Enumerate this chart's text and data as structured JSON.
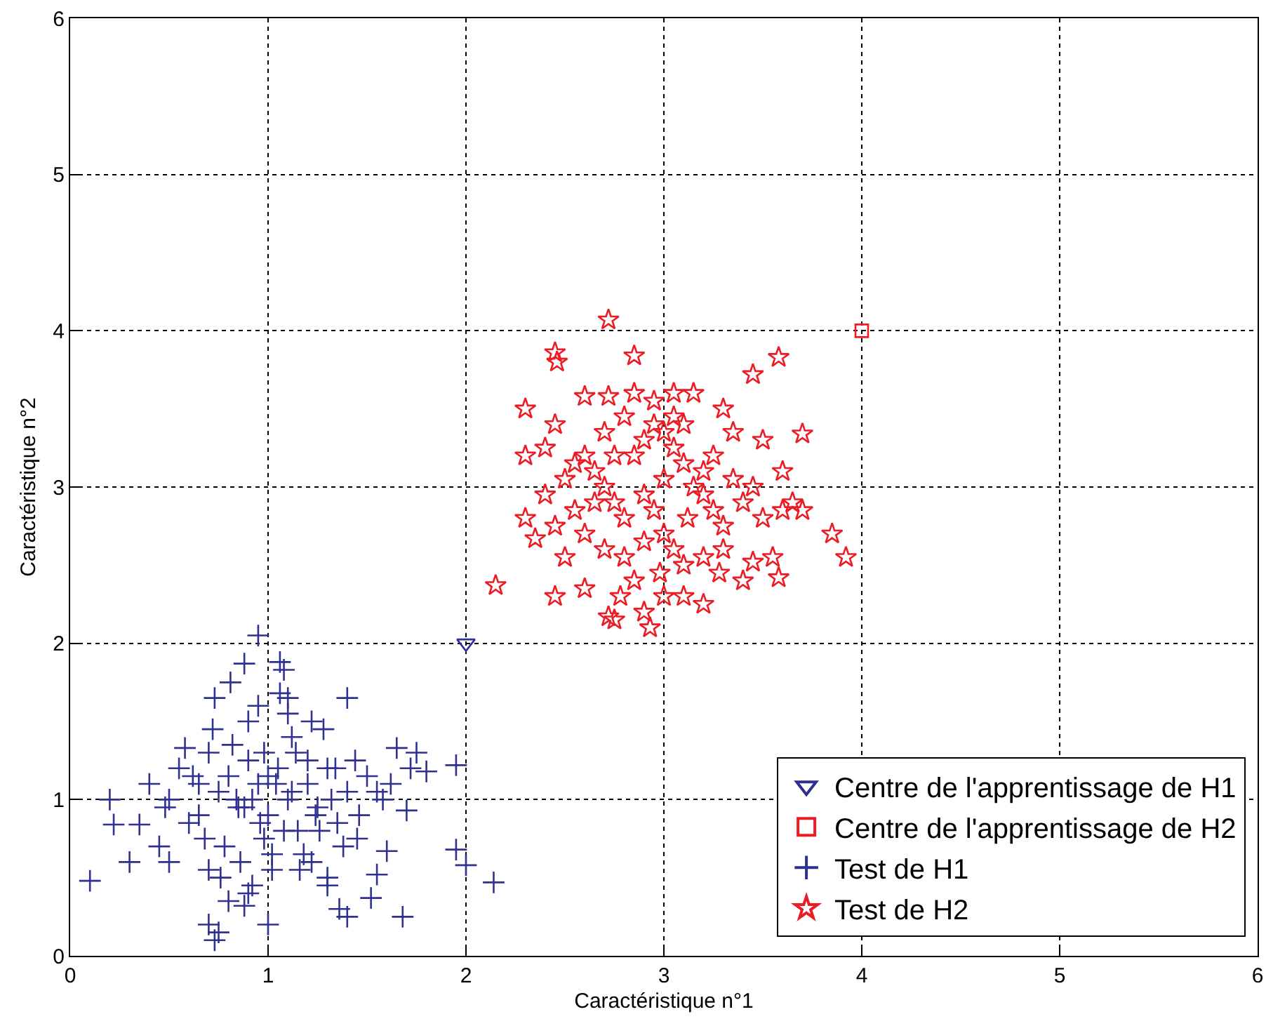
{
  "chart_data": {
    "type": "scatter",
    "xlabel": "Caractéristique n°1",
    "ylabel": "Caractéristique n°2",
    "xlim": [
      0,
      6
    ],
    "ylim": [
      0,
      6
    ],
    "xticks": [
      0,
      1,
      2,
      3,
      4,
      5,
      6
    ],
    "yticks": [
      0,
      1,
      2,
      3,
      4,
      5,
      6
    ],
    "grid": true,
    "legend": "bottom right",
    "series": [
      {
        "name": "Centre de l'apprentissage de H1",
        "color": "#2e3192",
        "marker": "triangle",
        "x": [
          2
        ],
        "values": [
          2
        ]
      },
      {
        "name": "Centre de l'apprentissage de H2",
        "color": "#ed1c24",
        "marker": "square",
        "x": [
          4
        ],
        "values": [
          4
        ]
      },
      {
        "name": "Test de H1",
        "color": "#2e3192",
        "marker": "cross",
        "x": [
          0.1,
          0.2,
          0.22,
          0.35,
          0.3,
          0.5,
          0.45,
          0.7,
          0.73,
          0.75,
          0.95,
          0.88,
          1.06,
          1.08,
          0.73,
          1.06,
          1.1,
          0.81,
          1.4,
          1.55,
          1.68,
          1.4,
          1.52,
          1.95,
          1.95,
          2.0,
          2.14,
          1.65,
          1.8,
          1.75,
          1.7,
          1.6,
          1.55,
          1.3,
          1.0,
          0.88,
          0.92,
          0.65,
          0.65,
          0.58,
          0.9,
          0.95,
          1.22,
          1.28,
          1.2,
          0.5,
          0.55,
          0.6,
          0.7,
          0.75,
          0.8,
          0.85,
          0.9,
          0.95,
          1.0,
          1.05,
          1.1,
          1.15,
          1.2,
          1.25,
          1.3,
          1.35,
          1.4,
          1.45,
          1.5,
          0.78,
          0.82,
          0.86,
          0.92,
          0.98,
          1.02,
          1.08,
          1.12,
          1.18,
          1.24,
          1.32,
          1.38,
          1.44,
          0.62,
          0.68,
          0.72,
          0.84,
          0.96,
          1.04,
          1.14,
          1.22,
          1.34,
          1.46,
          1.58,
          0.76,
          0.88,
          1.0,
          1.12,
          1.26,
          0.8,
          0.9,
          1.02,
          1.16,
          1.3,
          0.4,
          0.48,
          1.62,
          1.72,
          1.36,
          0.98,
          0.7,
          1.1
        ],
        "values": [
          0.48,
          1.0,
          0.84,
          0.84,
          0.6,
          0.6,
          0.7,
          0.2,
          0.1,
          0.15,
          2.05,
          1.87,
          1.88,
          1.83,
          1.65,
          1.68,
          1.65,
          1.75,
          1.65,
          1.05,
          0.25,
          0.25,
          0.37,
          1.22,
          0.68,
          0.58,
          0.47,
          1.33,
          1.18,
          1.3,
          0.93,
          0.67,
          0.52,
          0.5,
          0.2,
          0.32,
          0.45,
          0.9,
          1.1,
          1.33,
          1.5,
          1.6,
          1.5,
          1.45,
          1.25,
          1.0,
          1.2,
          0.85,
          1.3,
          1.05,
          1.15,
          0.95,
          1.25,
          1.1,
          0.9,
          1.2,
          1.0,
          0.8,
          1.1,
          0.95,
          1.2,
          0.85,
          1.05,
          0.75,
          1.15,
          0.7,
          1.35,
          0.6,
          1.0,
          1.3,
          0.55,
          0.8,
          1.4,
          0.65,
          0.9,
          1.0,
          0.7,
          1.25,
          1.15,
          0.75,
          1.45,
          1.0,
          0.85,
          1.1,
          1.3,
          0.6,
          1.2,
          0.9,
          1.0,
          0.5,
          0.95,
          1.15,
          1.05,
          0.8,
          0.35,
          0.4,
          0.65,
          0.55,
          0.45,
          1.1,
          0.95,
          1.1,
          1.2,
          0.3,
          0.75,
          0.55,
          1.55
        ]
      },
      {
        "name": "Test de H2",
        "color": "#ed1c24",
        "marker": "star",
        "x": [
          2.72,
          2.45,
          2.46,
          2.85,
          3.58,
          3.45,
          2.6,
          2.72,
          3.05,
          3.15,
          3.3,
          2.3,
          2.45,
          2.3,
          2.4,
          3.7,
          3.6,
          3.5,
          3.85,
          3.92,
          3.7,
          3.5,
          3.58,
          3.55,
          2.15,
          2.45,
          2.72,
          2.75,
          2.93,
          3.2,
          2.9,
          2.6,
          2.85,
          3.0,
          3.1,
          3.4,
          3.45,
          3.3,
          2.35,
          2.3,
          2.4,
          2.5,
          2.55,
          2.6,
          2.65,
          2.7,
          2.75,
          2.8,
          2.85,
          2.9,
          2.95,
          3.0,
          3.05,
          3.1,
          3.15,
          3.2,
          3.25,
          3.3,
          3.35,
          3.4,
          3.45,
          2.5,
          2.6,
          2.7,
          2.8,
          2.9,
          3.0,
          3.05,
          3.1,
          3.2,
          2.95,
          2.9,
          3.0,
          3.05,
          2.8,
          2.7,
          2.55,
          2.45,
          3.25,
          3.35,
          3.1,
          2.95,
          2.85,
          3.2,
          2.65,
          2.75,
          3.12,
          3.28,
          2.98,
          2.78,
          3.65,
          3.6
        ],
        "values": [
          4.07,
          3.86,
          3.8,
          3.84,
          3.83,
          3.72,
          3.58,
          3.58,
          3.6,
          3.6,
          3.5,
          3.5,
          3.4,
          3.2,
          3.25,
          3.34,
          3.1,
          3.3,
          2.7,
          2.55,
          2.85,
          2.8,
          2.42,
          2.55,
          2.37,
          2.3,
          2.17,
          2.15,
          2.1,
          2.25,
          2.2,
          2.35,
          2.4,
          2.3,
          2.3,
          2.4,
          2.52,
          2.6,
          2.67,
          2.8,
          2.95,
          3.05,
          3.15,
          3.2,
          3.1,
          3.0,
          2.9,
          2.8,
          3.2,
          3.3,
          3.4,
          3.35,
          3.25,
          3.15,
          3.0,
          2.95,
          2.85,
          2.75,
          3.05,
          2.9,
          3.0,
          2.55,
          2.7,
          2.6,
          2.55,
          2.65,
          2.7,
          2.6,
          2.5,
          2.55,
          2.85,
          2.95,
          3.05,
          3.45,
          3.45,
          3.35,
          2.85,
          2.75,
          3.2,
          3.35,
          3.4,
          3.55,
          3.6,
          3.1,
          2.9,
          3.2,
          2.8,
          2.45,
          2.45,
          2.3,
          2.9,
          2.85
        ]
      }
    ]
  }
}
